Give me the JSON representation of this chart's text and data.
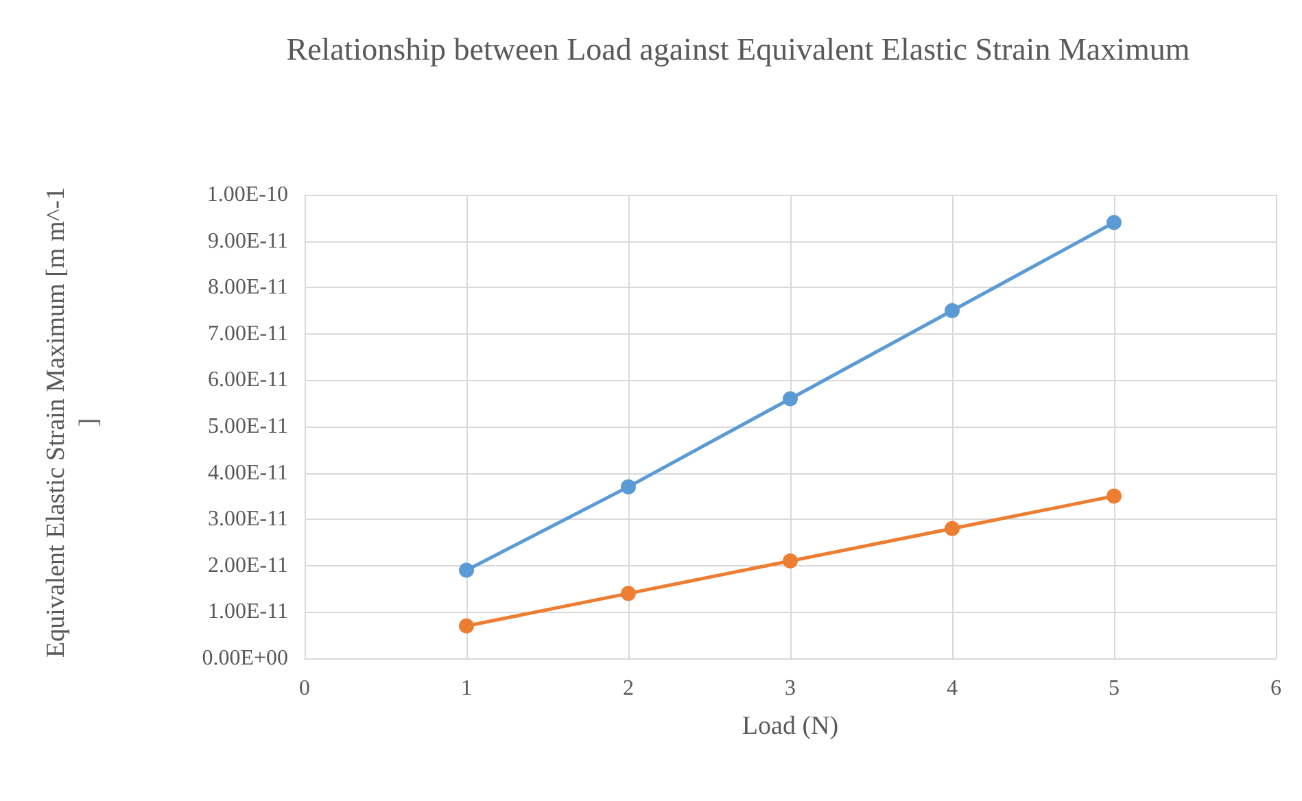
{
  "chart_data": {
    "type": "line",
    "title": "Relationship between Load against Equivalent Elastic Strain Maximum",
    "xlabel": "Load (N)",
    "ylabel": "Equivalent Elastic Strain Maximum [m m^-1]",
    "x": [
      1,
      2,
      3,
      4,
      5
    ],
    "series": [
      {
        "color": "#5b9bd5",
        "values": [
          1.9e-11,
          3.7e-11,
          5.6e-11,
          7.5e-11,
          9.4e-11
        ]
      },
      {
        "color": "#ed7d31",
        "values": [
          7e-12,
          1.4e-11,
          2.1e-11,
          2.8e-11,
          3.5e-11
        ]
      }
    ],
    "xlim": [
      0,
      6
    ],
    "xticks": [
      0,
      1,
      2,
      3,
      4,
      5,
      6
    ],
    "ylim": [
      0,
      1e-10
    ],
    "yticks": [
      {
        "value": 0,
        "label": "0.00E+00"
      },
      {
        "value": 1e-11,
        "label": "1.00E-11"
      },
      {
        "value": 2e-11,
        "label": "2.00E-11"
      },
      {
        "value": 3e-11,
        "label": "3.00E-11"
      },
      {
        "value": 4e-11,
        "label": "4.00E-11"
      },
      {
        "value": 5e-11,
        "label": "5.00E-11"
      },
      {
        "value": 6e-11,
        "label": "6.00E-11"
      },
      {
        "value": 7e-11,
        "label": "7.00E-11"
      },
      {
        "value": 8e-11,
        "label": "8.00E-11"
      },
      {
        "value": 9e-11,
        "label": "9.00E-11"
      },
      {
        "value": 1e-10,
        "label": "1.00E-10"
      }
    ],
    "grid": true,
    "marker": "circle",
    "line_style": "solid"
  }
}
